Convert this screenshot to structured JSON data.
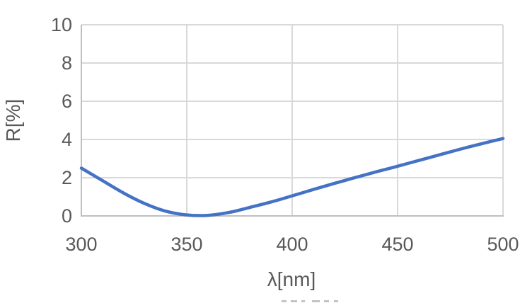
{
  "chart_data": {
    "type": "line",
    "title": "",
    "xlabel": "λ[nm]",
    "ylabel": "R[%]",
    "x": [
      300,
      310,
      320,
      330,
      340,
      350,
      360,
      370,
      380,
      390,
      400,
      410,
      420,
      430,
      440,
      450,
      460,
      470,
      480,
      490,
      500
    ],
    "series": [
      {
        "name": "R",
        "values": [
          2.5,
          1.85,
          1.2,
          0.65,
          0.25,
          0.05,
          0.03,
          0.18,
          0.45,
          0.73,
          1.05,
          1.38,
          1.7,
          2.01,
          2.31,
          2.6,
          2.9,
          3.2,
          3.5,
          3.78,
          4.05
        ]
      }
    ],
    "xlim": [
      300,
      500
    ],
    "ylim": [
      0,
      10
    ],
    "x_ticks": [
      300,
      350,
      400,
      450,
      500
    ],
    "y_ticks": [
      0,
      2,
      4,
      6,
      8,
      10
    ],
    "grid": true,
    "legend": false,
    "line_color": "#4472C4",
    "grid_color": "#D9D9D9",
    "axis_color": "#BFBFBF",
    "text_color": "#595959"
  }
}
